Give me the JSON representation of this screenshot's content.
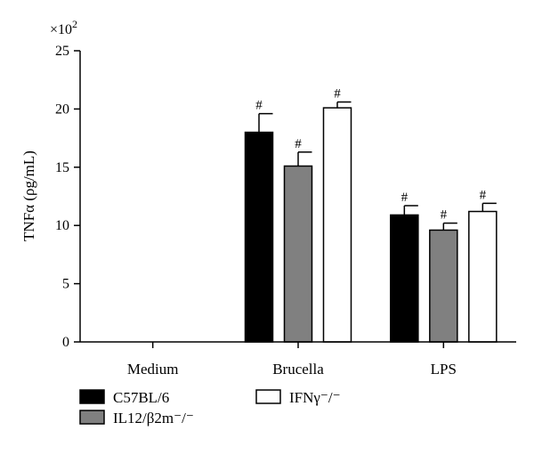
{
  "chart_data": {
    "type": "bar",
    "categories": [
      "Medium",
      "Brucella",
      "LPS"
    ],
    "ylabel": "TNFα (ρg/mL)",
    "y_multiplier": "×10",
    "y_multiplier_exponent": "2",
    "ylim": [
      0,
      25
    ],
    "yticks": [
      "0",
      "5",
      "10",
      "15",
      "20",
      "25"
    ],
    "series": [
      {
        "name": "C57BL/6",
        "color": "#000000",
        "values": [
          0,
          18.0,
          10.9
        ],
        "errors": [
          0,
          1.6,
          0.8
        ],
        "sig": [
          "",
          "#",
          "#"
        ]
      },
      {
        "name": "IL12/β2m⁻/⁻",
        "color": "#808080",
        "values": [
          0,
          15.1,
          9.6
        ],
        "errors": [
          0,
          1.2,
          0.6
        ],
        "sig": [
          "",
          "#",
          "#"
        ]
      },
      {
        "name": "IFNγ⁻/⁻",
        "color": "#ffffff",
        "values": [
          0,
          20.1,
          11.2
        ],
        "errors": [
          0,
          0.5,
          0.7
        ],
        "sig": [
          "",
          "#",
          "#"
        ]
      }
    ],
    "legend_position": "bottom-left"
  }
}
